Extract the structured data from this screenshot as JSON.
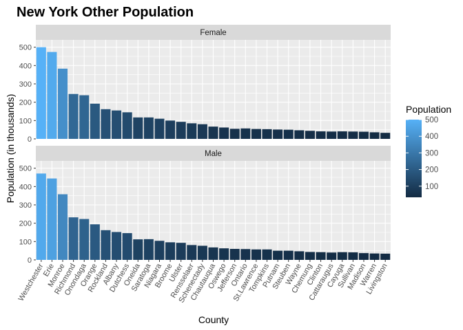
{
  "chart_data": {
    "type": "bar",
    "title": "New York Other Population",
    "xlabel": "County",
    "ylabel": "Population (in thousands)",
    "ylim": [
      0,
      540
    ],
    "yticks": [
      0,
      100,
      200,
      300,
      400,
      500
    ],
    "categories": [
      "Westchester",
      "Erie",
      "Monroe",
      "Richmond",
      "Onondaga",
      "Orange",
      "Rockland",
      "Albany",
      "Dutchess",
      "Oneida",
      "Saratoga",
      "Niagara",
      "Broome",
      "Ulster",
      "Rensselaer",
      "Schenectady",
      "Chautauqua",
      "Oswego",
      "Jefferson",
      "Ontario",
      "St.Lawrence",
      "Tompkins",
      "Putnam",
      "Steuben",
      "Wayne",
      "Chemung",
      "Clinton",
      "Cattaraugus",
      "Cayuga",
      "Sullivan",
      "Madison",
      "Warren",
      "Livingston"
    ],
    "facets": [
      {
        "label": "Female",
        "values": [
          500,
          474,
          383,
          245,
          238,
          192,
          162,
          155,
          145,
          117,
          117,
          110,
          100,
          93,
          85,
          80,
          67,
          62,
          55,
          57,
          54,
          53,
          51,
          50,
          47,
          44,
          41,
          40,
          41,
          40,
          39,
          36,
          33
        ]
      },
      {
        "label": "Male",
        "values": [
          471,
          444,
          358,
          232,
          223,
          194,
          162,
          152,
          146,
          112,
          113,
          104,
          96,
          93,
          81,
          77,
          68,
          63,
          60,
          59,
          57,
          57,
          50,
          50,
          47,
          43,
          42,
          40,
          42,
          41,
          37,
          35,
          34
        ]
      }
    ],
    "legend": {
      "title": "Population",
      "position": "right",
      "breaks": [
        100,
        200,
        300,
        400,
        500
      ],
      "low_color": "#132b43",
      "high_color": "#56b1f7",
      "range": [
        33,
        500
      ]
    },
    "grid": true,
    "panel_background": "#ebebeb",
    "strip_background": "#d9d9d9"
  }
}
